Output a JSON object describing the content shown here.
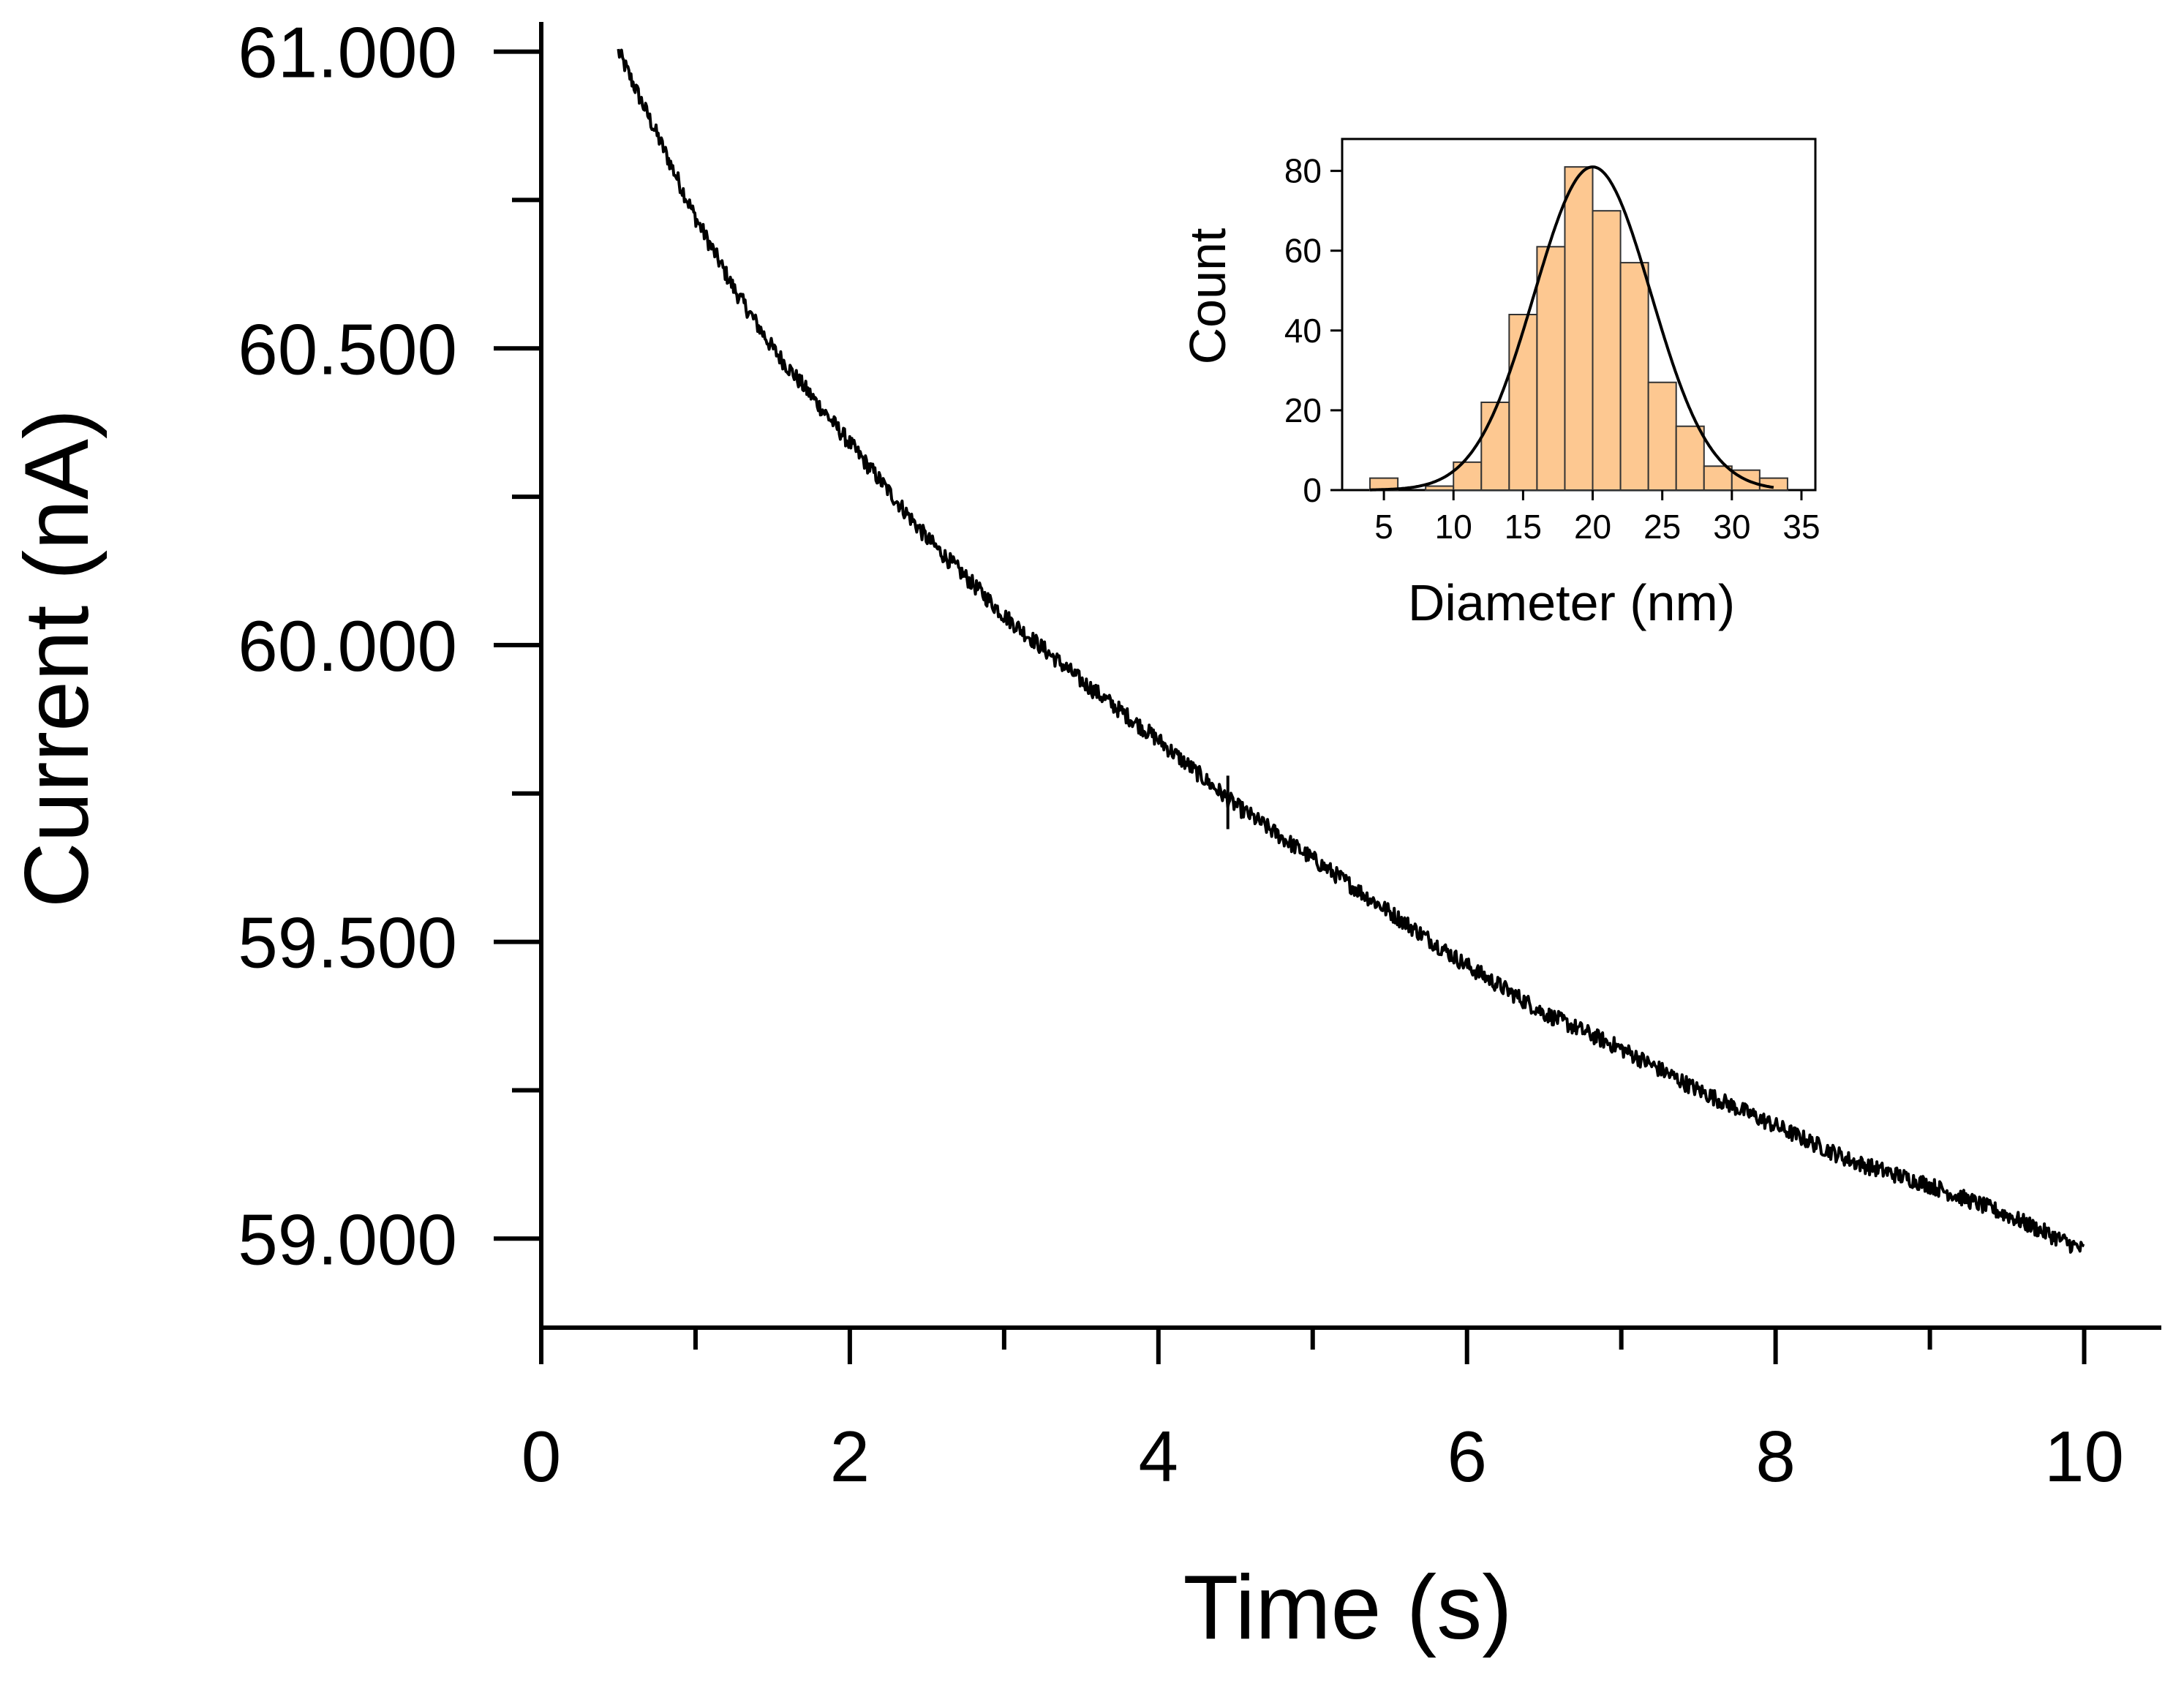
{
  "chart_data": [
    {
      "type": "line",
      "title": "",
      "xlabel": "Time (s)",
      "ylabel": "Current (nA)",
      "xlim": [
        0,
        10.5
      ],
      "ylim": [
        58.85,
        61.05
      ],
      "x_ticks": [
        0,
        2,
        4,
        6,
        8,
        10
      ],
      "x_tick_labels": [
        "0",
        "2",
        "4",
        "6",
        "8",
        "10"
      ],
      "x_minor_ticks": [
        1,
        3,
        5,
        7,
        9
      ],
      "y_ticks": [
        59.0,
        59.5,
        60.0,
        60.5,
        61.0
      ],
      "y_tick_labels": [
        "59.000",
        "59.500",
        "60.000",
        "60.500",
        "61.000"
      ],
      "y_minor_ticks": [
        59.25,
        59.75,
        60.25,
        60.75
      ],
      "grid": false,
      "series": [
        {
          "name": "Current",
          "color": "#000000",
          "x": [
            0.5,
            0.75,
            1.0,
            1.25,
            1.5,
            2.0,
            2.5,
            3.0,
            3.5,
            4.0,
            4.5,
            5.0,
            5.5,
            6.0,
            6.5,
            7.0,
            7.5,
            8.0,
            8.5,
            9.0,
            9.5,
            10.0
          ],
          "values": [
            61.0,
            60.86,
            60.72,
            60.6,
            60.5,
            60.34,
            60.18,
            60.05,
            59.94,
            59.84,
            59.73,
            59.64,
            59.55,
            59.46,
            59.38,
            59.32,
            59.25,
            59.19,
            59.13,
            59.09,
            59.04,
            58.98
          ]
        }
      ],
      "glitches": [
        {
          "x": 4.45,
          "y_from": 59.78,
          "y_to": 59.69
        }
      ]
    },
    {
      "type": "bar",
      "title": "",
      "xlabel": "Diameter (nm)",
      "ylabel": "Count",
      "xlim": [
        2,
        36
      ],
      "ylim": [
        0,
        88
      ],
      "x_ticks": [
        5,
        10,
        15,
        20,
        25,
        30,
        35
      ],
      "x_tick_labels": [
        "5",
        "10",
        "15",
        "20",
        "25",
        "30",
        "35"
      ],
      "y_ticks": [
        0,
        20,
        40,
        60,
        80
      ],
      "y_tick_labels": [
        "0",
        "20",
        "40",
        "60",
        "80"
      ],
      "bin_width": 2,
      "bin_centers": [
        5,
        7,
        9,
        11,
        13,
        15,
        17,
        19,
        21,
        23,
        25,
        27,
        29,
        31,
        33
      ],
      "values": [
        3,
        0,
        1,
        7,
        22,
        44,
        61,
        81,
        70,
        57,
        27,
        16,
        6,
        5,
        3
      ],
      "bar_fill": "#fdc891",
      "bar_stroke": "#333333",
      "fit": {
        "type": "gaussian",
        "mean": 20,
        "sigma": 4.2,
        "amplitude": 81,
        "color": "#000000"
      }
    }
  ]
}
